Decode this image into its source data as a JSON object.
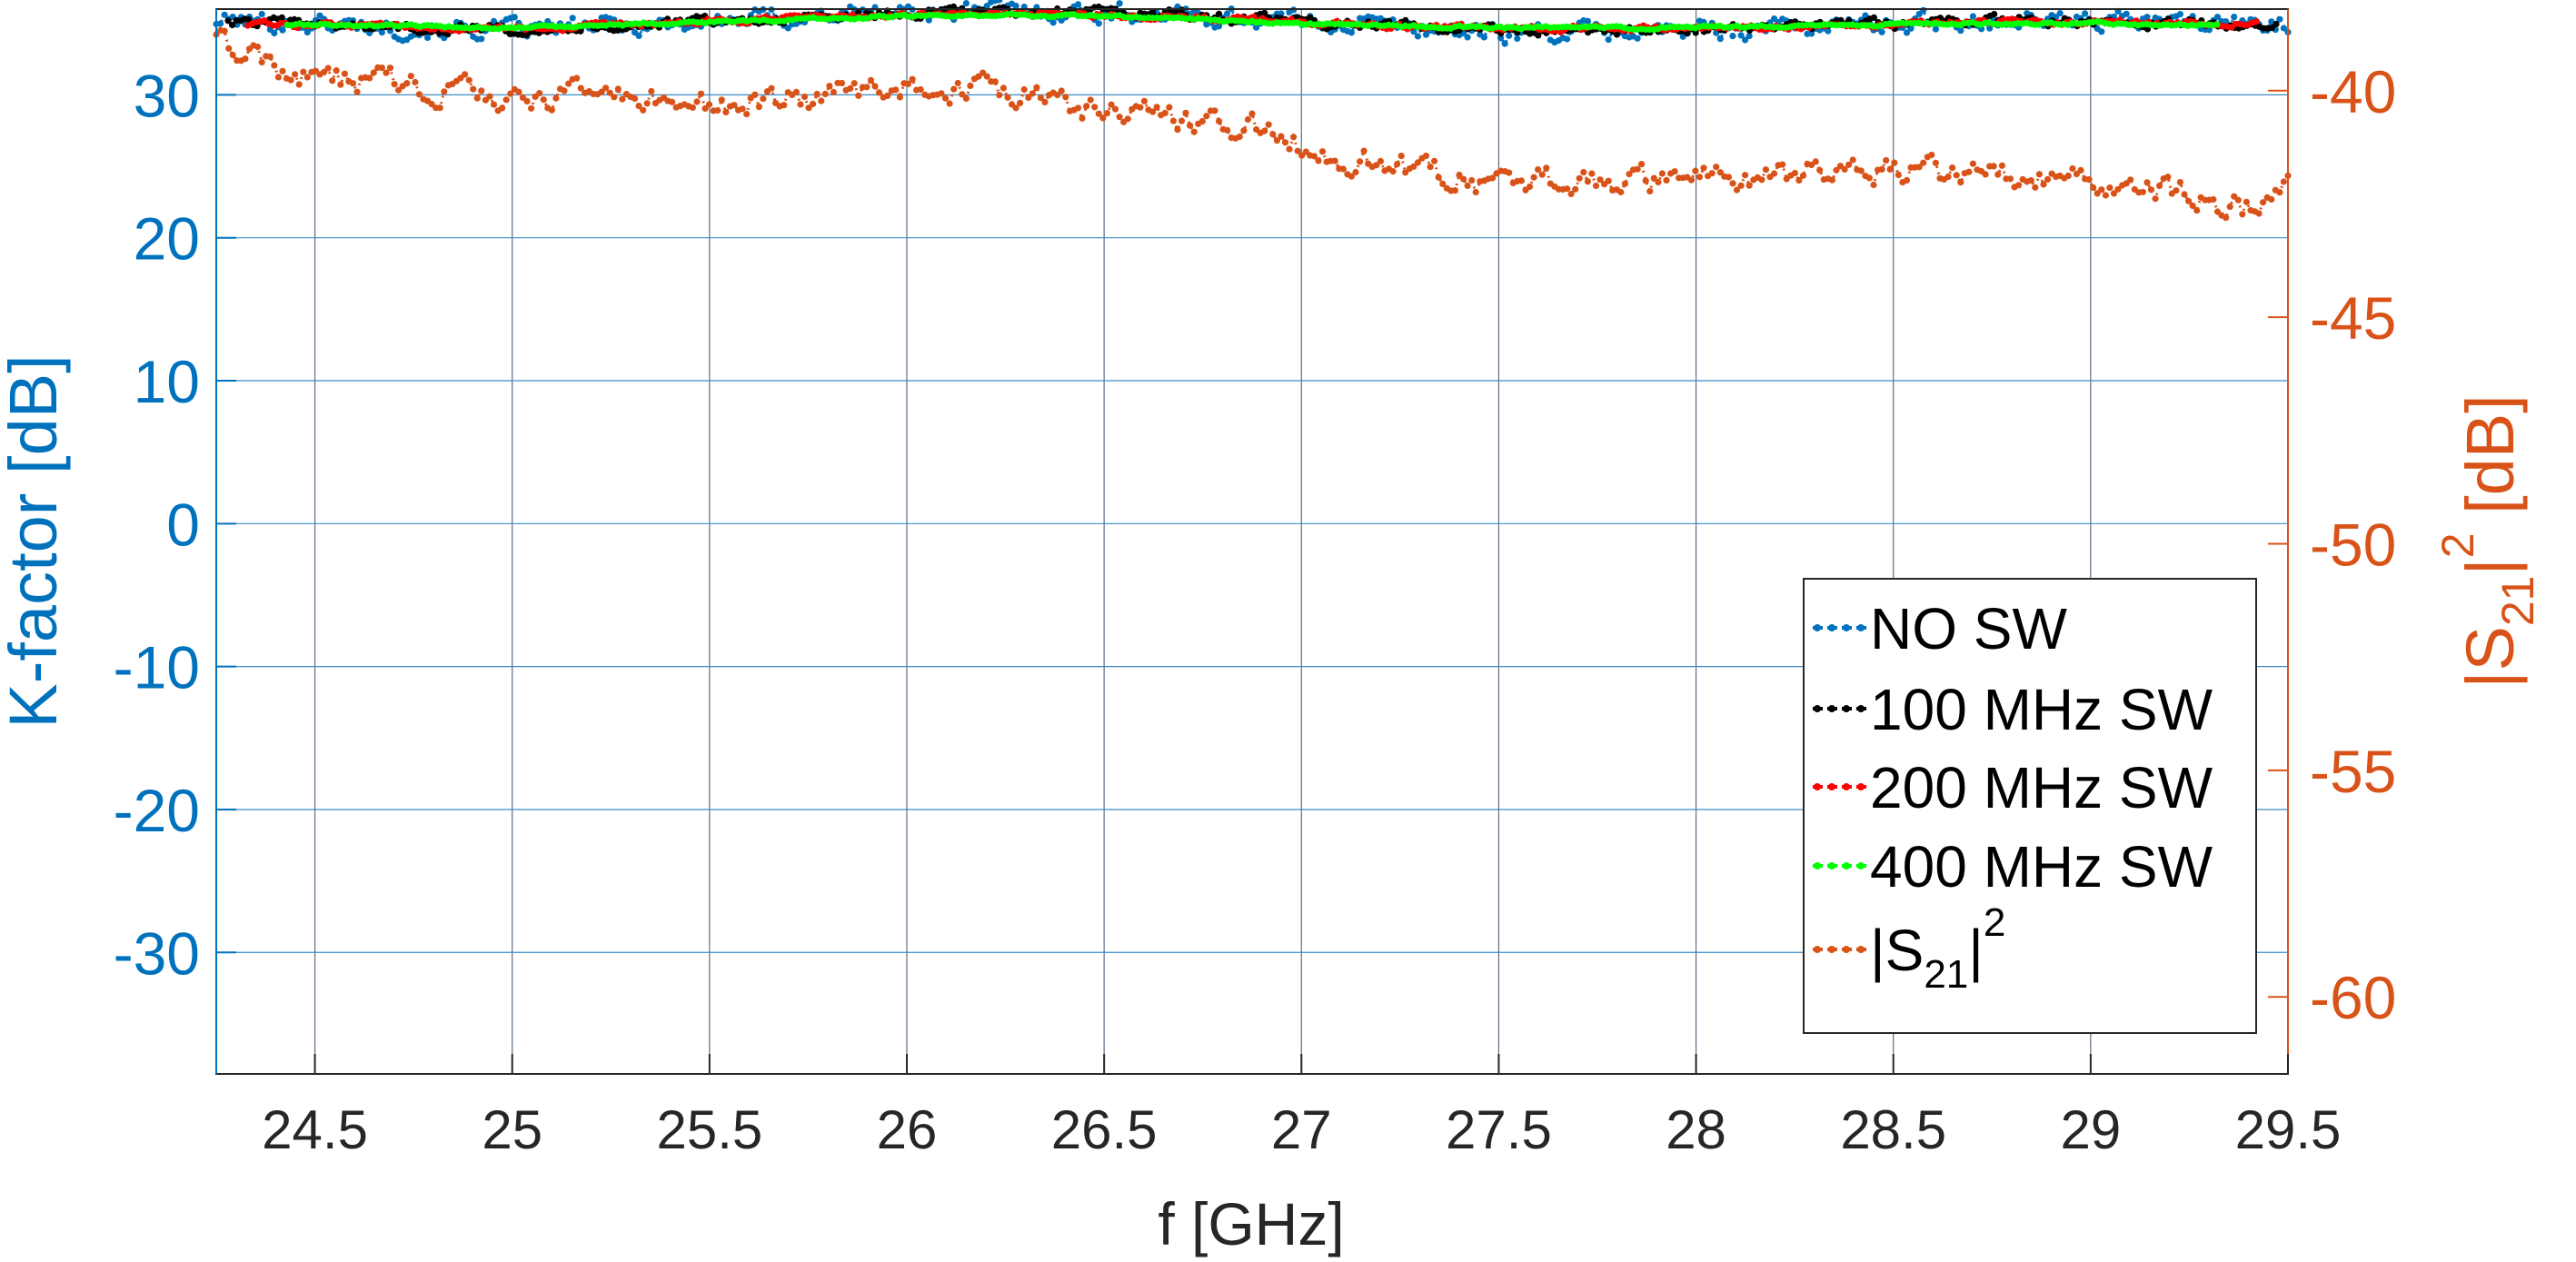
{
  "chart_data": {
    "type": "line",
    "title": "",
    "xlabel": "f [GHz]",
    "ylabel_left": "K-factor [dB]",
    "ylabel_right_parts": [
      "|S",
      "21",
      "|",
      "2",
      " [dB]"
    ],
    "xlim": [
      24.25,
      29.5
    ],
    "ylim_left": [
      -38.5,
      36
    ],
    "ylim_right": [
      -61.7,
      -38.2
    ],
    "xticks": [
      24.5,
      25,
      25.5,
      26,
      26.5,
      27,
      27.5,
      28,
      28.5,
      29,
      29.5
    ],
    "xtick_labels": [
      "24.5",
      "25",
      "25.5",
      "26",
      "26.5",
      "27",
      "27.5",
      "28",
      "28.5",
      "29",
      "29.5"
    ],
    "yticks_left": [
      30,
      20,
      10,
      0,
      -10,
      -20,
      -30
    ],
    "ytick_labels_left": [
      "30",
      "20",
      "10",
      "0",
      "-10",
      "-20",
      "-30"
    ],
    "yticks_right": [
      -40,
      -45,
      -50,
      -55,
      -60
    ],
    "ytick_labels_right": [
      "-40",
      "-45",
      "-50",
      "-55",
      "-60"
    ],
    "grid": true,
    "legend_position": "lower-right",
    "colors": {
      "left_axis": "#0072bd",
      "right_axis": "#d95319",
      "grid": "#4a90c2",
      "frame": "#262626"
    },
    "series": [
      {
        "name": "NO SW",
        "axis": "left",
        "color": "#0072bd",
        "x": [
          24.25,
          24.5,
          24.75,
          25.0,
          25.25,
          25.5,
          25.75,
          26.0,
          26.25,
          26.5,
          26.75,
          27.0,
          27.25,
          27.5,
          27.75,
          28.0,
          28.25,
          28.5,
          28.75,
          29.0,
          29.25,
          29.5
        ],
        "y": [
          35.2,
          35.0,
          34.7,
          34.5,
          34.8,
          35.1,
          35.5,
          35.8,
          35.9,
          35.8,
          35.5,
          35.2,
          34.8,
          34.3,
          34.4,
          34.5,
          34.8,
          35.0,
          35.3,
          35.2,
          35.0,
          35.1
        ],
        "jitter": 0.7
      },
      {
        "name": "100 MHz SW",
        "axis": "left",
        "color": "#000000",
        "x": [
          24.28,
          24.5,
          24.75,
          25.0,
          25.25,
          25.5,
          25.75,
          26.0,
          26.25,
          26.5,
          26.75,
          27.0,
          27.25,
          27.5,
          27.75,
          28.0,
          28.25,
          28.5,
          28.75,
          29.0,
          29.25,
          29.47
        ],
        "y": [
          35.1,
          34.9,
          34.7,
          34.6,
          34.8,
          35.1,
          35.4,
          35.7,
          35.8,
          35.7,
          35.5,
          35.1,
          34.8,
          34.5,
          34.5,
          34.6,
          34.8,
          35.0,
          35.2,
          35.1,
          35.0,
          35.0
        ],
        "jitter": 0.35
      },
      {
        "name": "200 MHz SW",
        "axis": "left",
        "color": "#ff0000",
        "x": [
          24.33,
          24.5,
          24.75,
          25.0,
          25.25,
          25.5,
          25.75,
          26.0,
          26.25,
          26.5,
          26.75,
          27.0,
          27.25,
          27.5,
          27.75,
          28.0,
          28.25,
          28.5,
          28.75,
          29.0,
          29.25,
          29.42
        ],
        "y": [
          35.0,
          34.9,
          34.7,
          34.6,
          34.8,
          35.1,
          35.4,
          35.6,
          35.7,
          35.6,
          35.4,
          35.1,
          34.8,
          34.6,
          34.6,
          34.7,
          34.8,
          35.0,
          35.1,
          35.1,
          35.0,
          35.0
        ],
        "jitter": 0.2
      },
      {
        "name": "400 MHz SW",
        "axis": "left",
        "color": "#00ff00",
        "x": [
          24.43,
          24.5,
          24.75,
          25.0,
          25.25,
          25.5,
          25.75,
          26.0,
          26.25,
          26.5,
          26.75,
          27.0,
          27.25,
          27.5,
          27.75,
          28.0,
          28.25,
          28.5,
          28.75,
          29.0,
          29.25,
          29.32
        ],
        "y": [
          34.9,
          34.9,
          34.8,
          34.7,
          34.9,
          35.1,
          35.3,
          35.5,
          35.6,
          35.5,
          35.3,
          35.0,
          34.8,
          34.7,
          34.7,
          34.7,
          34.8,
          34.9,
          35.0,
          35.0,
          34.9,
          34.9
        ],
        "jitter": 0.1
      },
      {
        "name_parts": [
          "|S",
          "21",
          "|",
          "2"
        ],
        "axis": "right",
        "color": "#d95319",
        "x": [
          24.25,
          24.35,
          24.45,
          24.5,
          24.75,
          25.0,
          25.25,
          25.5,
          25.75,
          26.0,
          26.25,
          26.5,
          26.75,
          26.9,
          27.0,
          27.25,
          27.5,
          27.75,
          28.0,
          28.25,
          28.5,
          28.75,
          29.0,
          29.25,
          29.4,
          29.5
        ],
        "y": [
          -38.9,
          -39.3,
          -39.7,
          -39.7,
          -39.9,
          -40.2,
          -40.1,
          -40.3,
          -40.2,
          -39.9,
          -40.0,
          -40.5,
          -40.6,
          -40.9,
          -41.2,
          -41.7,
          -42.1,
          -42.0,
          -42.0,
          -41.8,
          -41.8,
          -41.9,
          -41.9,
          -42.3,
          -42.6,
          -42.2
        ],
        "jitter": 0.3
      }
    ]
  }
}
